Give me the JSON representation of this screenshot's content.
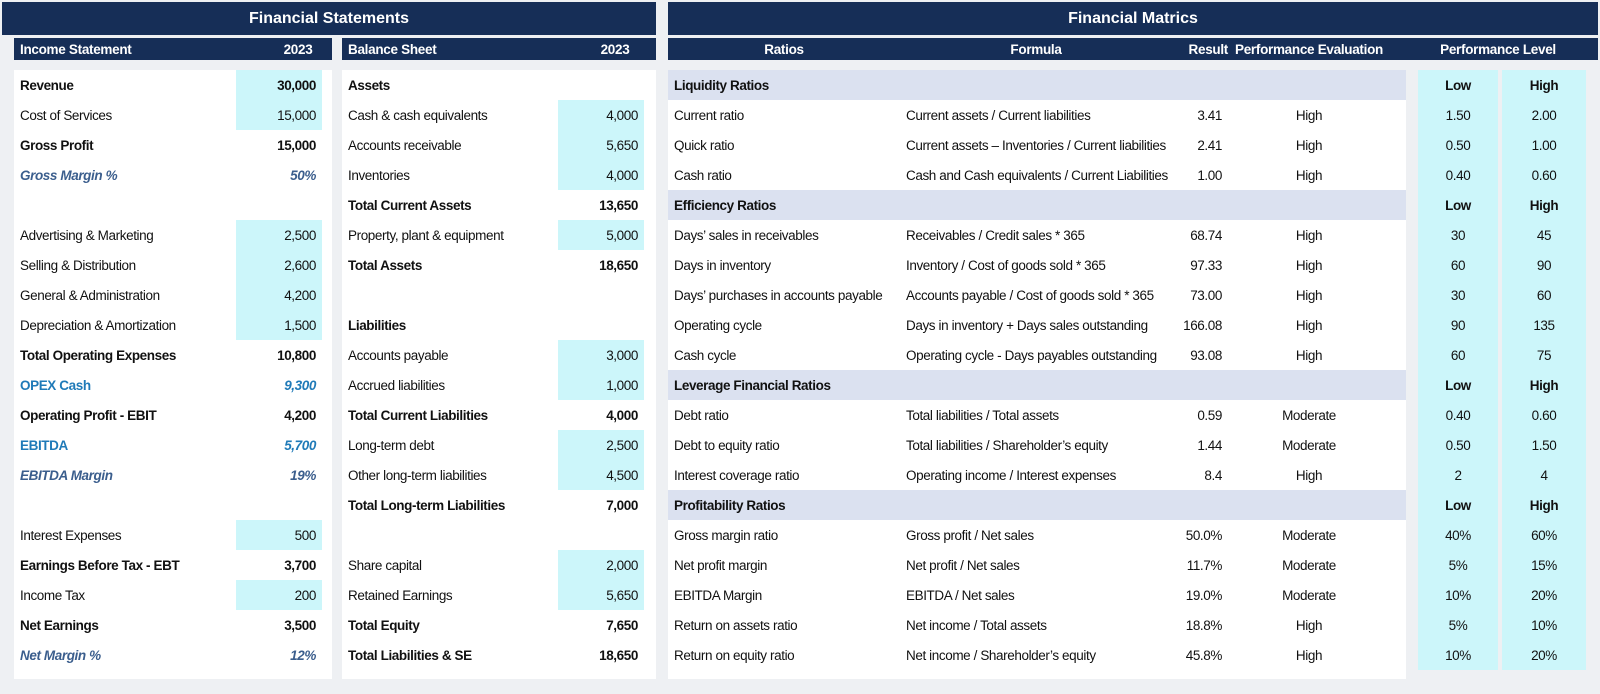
{
  "titles": {
    "left": "Financial Statements",
    "right": "Financial Matrics"
  },
  "income": {
    "header": {
      "label": "Income Statement",
      "year": "2023"
    },
    "rows": [
      {
        "label": "Revenue",
        "value": "30,000",
        "style": "bold",
        "input": true
      },
      {
        "label": "Cost of Services",
        "value": "15,000",
        "style": "",
        "input": true
      },
      {
        "label": "Gross Profit",
        "value": "15,000",
        "style": "bold",
        "input": false
      },
      {
        "label": "Gross Margin %",
        "value": "50%",
        "style": "ital-blue",
        "input": false
      },
      {
        "label": "",
        "value": "",
        "style": "",
        "input": false
      },
      {
        "label": "Advertising & Marketing",
        "value": "2,500",
        "style": "",
        "input": true
      },
      {
        "label": "Selling & Distribution",
        "value": "2,600",
        "style": "",
        "input": true
      },
      {
        "label": "General & Administration",
        "value": "4,200",
        "style": "",
        "input": true
      },
      {
        "label": "Depreciation & Amortization",
        "value": "1,500",
        "style": "",
        "input": true
      },
      {
        "label": "Total Operating Expenses",
        "value": "10,800",
        "style": "bold",
        "input": false
      },
      {
        "label": "OPEX Cash",
        "value": "9,300",
        "style": "blue-mix",
        "input": false
      },
      {
        "label": "Operating Profit - EBIT",
        "value": "4,200",
        "style": "bold",
        "input": false
      },
      {
        "label": "EBITDA",
        "value": "5,700",
        "style": "blue-mix",
        "input": false
      },
      {
        "label": "EBITDA Margin",
        "value": "19%",
        "style": "ital-blue",
        "input": false
      },
      {
        "label": "",
        "value": "",
        "style": "",
        "input": false
      },
      {
        "label": "Interest Expenses",
        "value": "500",
        "style": "",
        "input": true
      },
      {
        "label": "Earnings Before Tax - EBT",
        "value": "3,700",
        "style": "bold",
        "input": false
      },
      {
        "label": "Income Tax",
        "value": "200",
        "style": "",
        "input": true
      },
      {
        "label": "Net Earnings",
        "value": "3,500",
        "style": "bold",
        "input": false
      },
      {
        "label": "Net Margin %",
        "value": "12%",
        "style": "ital-blue",
        "input": false
      }
    ]
  },
  "balance": {
    "header": {
      "label": "Balance Sheet",
      "year": "2023"
    },
    "rows": [
      {
        "label": "Assets",
        "value": "",
        "style": "bold",
        "input": false
      },
      {
        "label": "Cash & cash equivalents",
        "value": "4,000",
        "style": "",
        "input": true
      },
      {
        "label": "Accounts receivable",
        "value": "5,650",
        "style": "",
        "input": true
      },
      {
        "label": "Inventories",
        "value": "4,000",
        "style": "",
        "input": true
      },
      {
        "label": "Total Current Assets",
        "value": "13,650",
        "style": "bold",
        "input": false
      },
      {
        "label": "Property, plant & equipment",
        "value": "5,000",
        "style": "",
        "input": true
      },
      {
        "label": "Total Assets",
        "value": "18,650",
        "style": "bold",
        "input": false
      },
      {
        "label": "",
        "value": "",
        "style": "",
        "input": false
      },
      {
        "label": "Liabilities",
        "value": "",
        "style": "bold",
        "input": false
      },
      {
        "label": "Accounts payable",
        "value": "3,000",
        "style": "",
        "input": true
      },
      {
        "label": "Accrued liabilities",
        "value": "1,000",
        "style": "",
        "input": true
      },
      {
        "label": "Total Current Liabilities",
        "value": "4,000",
        "style": "bold",
        "input": false
      },
      {
        "label": "Long-term debt",
        "value": "2,500",
        "style": "",
        "input": true
      },
      {
        "label": "Other long-term liabilities",
        "value": "4,500",
        "style": "",
        "input": true
      },
      {
        "label": "Total Long-term Liabilities",
        "value": "7,000",
        "style": "bold",
        "input": false
      },
      {
        "label": "",
        "value": "",
        "style": "",
        "input": false
      },
      {
        "label": "Share capital",
        "value": "2,000",
        "style": "",
        "input": true
      },
      {
        "label": "Retained Earnings",
        "value": "5,650",
        "style": "",
        "input": true
      },
      {
        "label": "Total Equity",
        "value": "7,650",
        "style": "bold",
        "input": false
      },
      {
        "label": "Total Liabilities & SE",
        "value": "18,650",
        "style": "bold",
        "input": false
      }
    ]
  },
  "ratios": {
    "header": {
      "ratios": "Ratios",
      "formula": "Formula",
      "result": "Result",
      "evaluation": "Performance Evaluation",
      "level": "Performance Level"
    },
    "rows": [
      {
        "section": true,
        "name": "Liquidity Ratios",
        "low": "Low",
        "high": "High"
      },
      {
        "name": "Current ratio",
        "formula": "Current assets / Current liabilities",
        "result": "3.41",
        "eval": "High",
        "low": "1.50",
        "high": "2.00"
      },
      {
        "name": "Quick ratio",
        "formula": "Current assets – Inventories / Current liabilities",
        "result": "2.41",
        "eval": "High",
        "low": "0.50",
        "high": "1.00"
      },
      {
        "name": "Cash ratio",
        "formula": "Cash and Cash equivalents / Current Liabilities",
        "result": "1.00",
        "eval": "High",
        "low": "0.40",
        "high": "0.60"
      },
      {
        "section": true,
        "name": "Efficiency Ratios",
        "low": "Low",
        "high": "High"
      },
      {
        "name": "Days’ sales in receivables",
        "formula": "Receivables / Credit sales * 365",
        "result": "68.74",
        "eval": "High",
        "low": "30",
        "high": "45"
      },
      {
        "name": "Days in inventory",
        "formula": "Inventory / Cost of goods sold * 365",
        "result": "97.33",
        "eval": "High",
        "low": "60",
        "high": "90"
      },
      {
        "name": "Days’ purchases in accounts payable",
        "formula": "Accounts payable / Cost of goods sold * 365",
        "result": "73.00",
        "eval": "High",
        "low": "30",
        "high": "60"
      },
      {
        "name": "Operating cycle",
        "formula": "Days in inventory + Days sales outstanding",
        "result": "166.08",
        "eval": "High",
        "low": "90",
        "high": "135"
      },
      {
        "name": "Cash cycle",
        "formula": "Operating cycle - Days payables outstanding",
        "result": "93.08",
        "eval": "High",
        "low": "60",
        "high": "75"
      },
      {
        "section": true,
        "name": "Leverage Financial Ratios",
        "low": "Low",
        "high": "High"
      },
      {
        "name": "Debt ratio",
        "formula": "Total liabilities / Total assets",
        "result": "0.59",
        "eval": "Moderate",
        "low": "0.40",
        "high": "0.60"
      },
      {
        "name": "Debt to equity ratio",
        "formula": "Total liabilities / Shareholder’s equity",
        "result": "1.44",
        "eval": "Moderate",
        "low": "0.50",
        "high": "1.50"
      },
      {
        "name": "Interest coverage ratio",
        "formula": "Operating income / Interest expenses",
        "result": "8.4",
        "eval": "High",
        "low": "2",
        "high": "4"
      },
      {
        "section": true,
        "name": "Profitability Ratios",
        "low": "Low",
        "high": "High"
      },
      {
        "name": "Gross margin ratio",
        "formula": "Gross profit / Net sales",
        "result": "50.0%",
        "eval": "Moderate",
        "low": "40%",
        "high": "60%"
      },
      {
        "name": "Net profit margin",
        "formula": "Net profit / Net sales",
        "result": "11.7%",
        "eval": "Moderate",
        "low": "5%",
        "high": "15%"
      },
      {
        "name": "EBITDA Margin",
        "formula": "EBITDA / Net sales",
        "result": "19.0%",
        "eval": "Moderate",
        "low": "10%",
        "high": "20%"
      },
      {
        "name": "Return on assets ratio",
        "formula": "Net income / Total assets",
        "result": "18.8%",
        "eval": "High",
        "low": "5%",
        "high": "10%"
      },
      {
        "name": "Return on equity ratio",
        "formula": "Net income / Shareholder’s equity",
        "result": "45.8%",
        "eval": "High",
        "low": "10%",
        "high": "20%"
      }
    ]
  }
}
